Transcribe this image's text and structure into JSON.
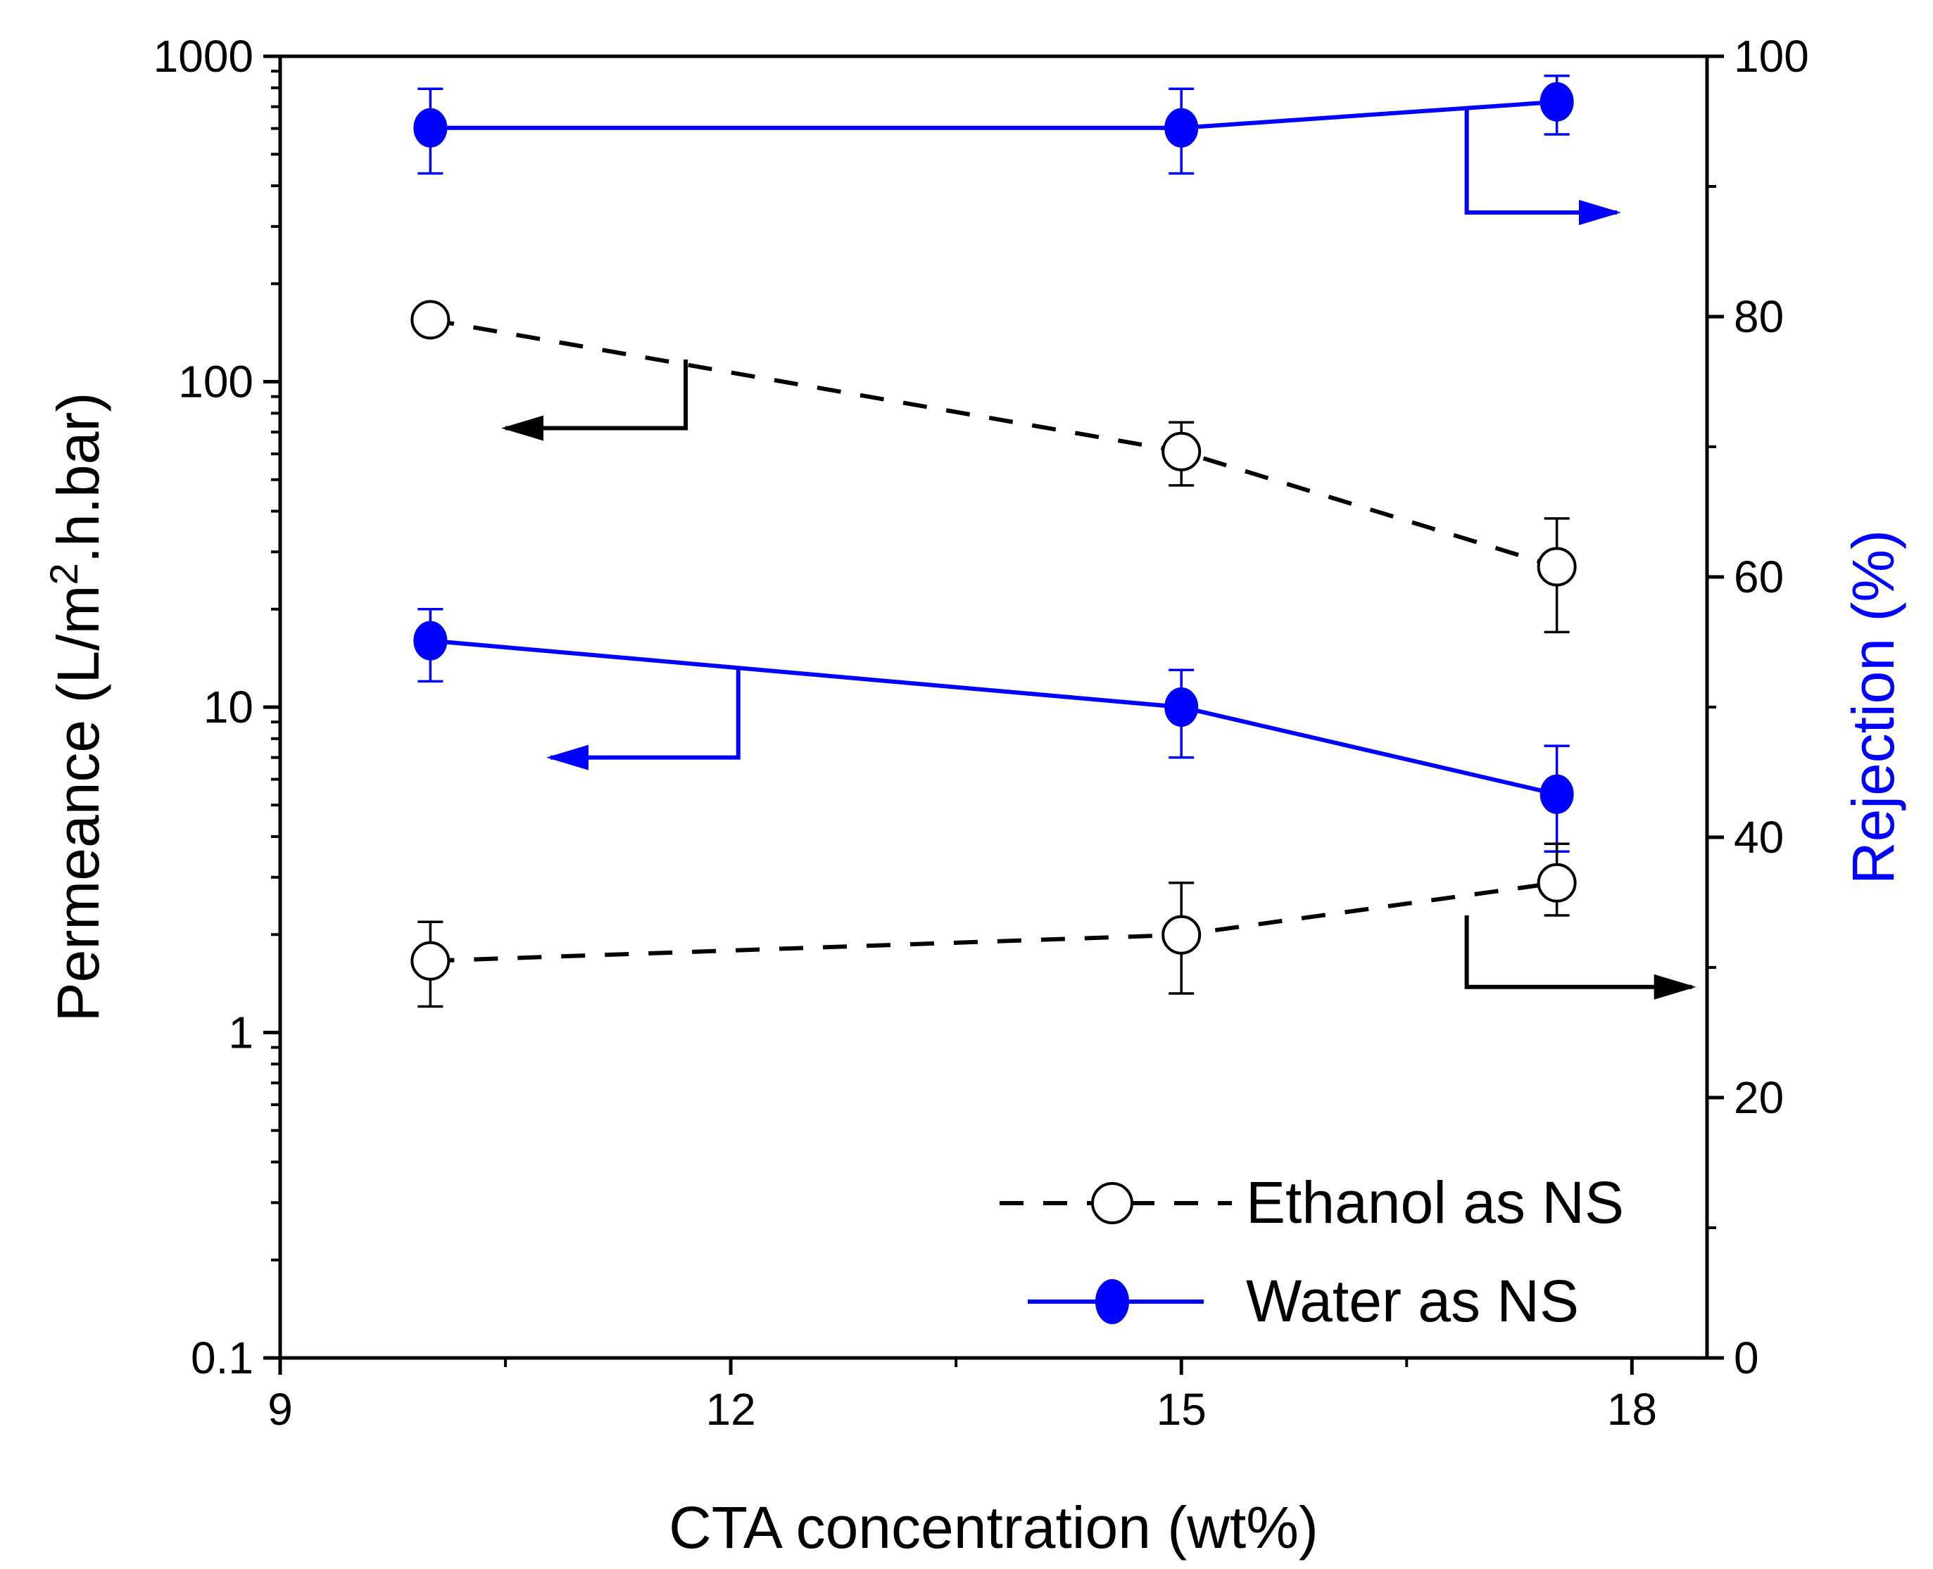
{
  "chart_data": {
    "type": "line",
    "xlabel": "CTA concentration (wt%)",
    "ylabel_left": "Permeance (L/m²·h·bar)",
    "ylabel_left_parts": {
      "pre": "Permeance (L/m",
      "sup": "2",
      "post": ".h.bar)"
    },
    "ylabel_right": "Rejection (%)",
    "xlim": [
      9,
      18.5
    ],
    "ylim_left": [
      0.1,
      1000
    ],
    "ylim_left_scale": "log",
    "ylim_right": [
      0,
      100
    ],
    "grid": false,
    "legend_position": "bottom-right",
    "x_ticks": [
      9,
      12,
      15,
      18
    ],
    "x_tick_labels": [
      "9",
      "12",
      "15",
      "18"
    ],
    "y_left_ticks": [
      0.1,
      1,
      10,
      100,
      1000
    ],
    "y_left_tick_labels": [
      "0.1",
      "1",
      "10",
      "100",
      "1000"
    ],
    "y_right_ticks": [
      0,
      20,
      40,
      60,
      80,
      100
    ],
    "y_right_tick_labels": [
      "0",
      "20",
      "40",
      "60",
      "80",
      "100"
    ],
    "colors": {
      "ethanol": "#000000",
      "water": "#0000ff"
    },
    "series": [
      {
        "name": "Ethanol as NS",
        "legend": true,
        "axis": "left",
        "color": "#000000",
        "marker": "open-circle",
        "line": "dashed",
        "x": [
          10,
          15,
          17.5
        ],
        "y": [
          155,
          61,
          27
        ],
        "err": [
          [
            140,
            170
          ],
          [
            48,
            75
          ],
          [
            17,
            38
          ]
        ]
      },
      {
        "name": "Water as NS",
        "legend": true,
        "axis": "left",
        "color": "#0000ff",
        "marker": "filled-circle",
        "line": "solid",
        "x": [
          10,
          15,
          17.5
        ],
        "y": [
          16,
          10,
          5.4
        ],
        "err": [
          [
            12,
            20
          ],
          [
            7,
            13
          ],
          [
            3.6,
            7.6
          ]
        ]
      },
      {
        "axis": "right",
        "color": "#000000",
        "marker": "open-circle",
        "line": "dashed",
        "x": [
          10,
          15,
          17.5
        ],
        "y": [
          30.5,
          32.5,
          36.5
        ],
        "err": [
          [
            27,
            33.5
          ],
          [
            28,
            36.5
          ],
          [
            34,
            39.5
          ]
        ]
      },
      {
        "axis": "right",
        "color": "#0000ff",
        "marker": "filled-circle",
        "line": "solid",
        "x": [
          10,
          15,
          17.5
        ],
        "y": [
          94.5,
          94.5,
          96.5
        ],
        "err": [
          [
            91,
            97.5
          ],
          [
            91,
            97.5
          ],
          [
            94,
            98.5
          ]
        ]
      }
    ],
    "axis_pointers": [
      {
        "color": "#000000",
        "points": [
          [
            11.7,
            117
          ],
          [
            11.7,
            72
          ],
          [
            10.5,
            72
          ]
        ],
        "arrow": "end"
      },
      {
        "color": "#0000ff",
        "points": [
          [
            12.05,
            13.2
          ],
          [
            12.05,
            7.0
          ],
          [
            10.8,
            7.0
          ]
        ],
        "arrow": "end"
      },
      {
        "color": "#0000ff",
        "points": [
          [
            16.9,
            96
          ],
          [
            16.9,
            88
          ],
          [
            17.9,
            88
          ]
        ],
        "arrow": "end"
      },
      {
        "color": "#000000",
        "points": [
          [
            16.9,
            34
          ],
          [
            16.9,
            28.5
          ],
          [
            18.4,
            28.5
          ]
        ],
        "arrow": "end"
      }
    ]
  }
}
